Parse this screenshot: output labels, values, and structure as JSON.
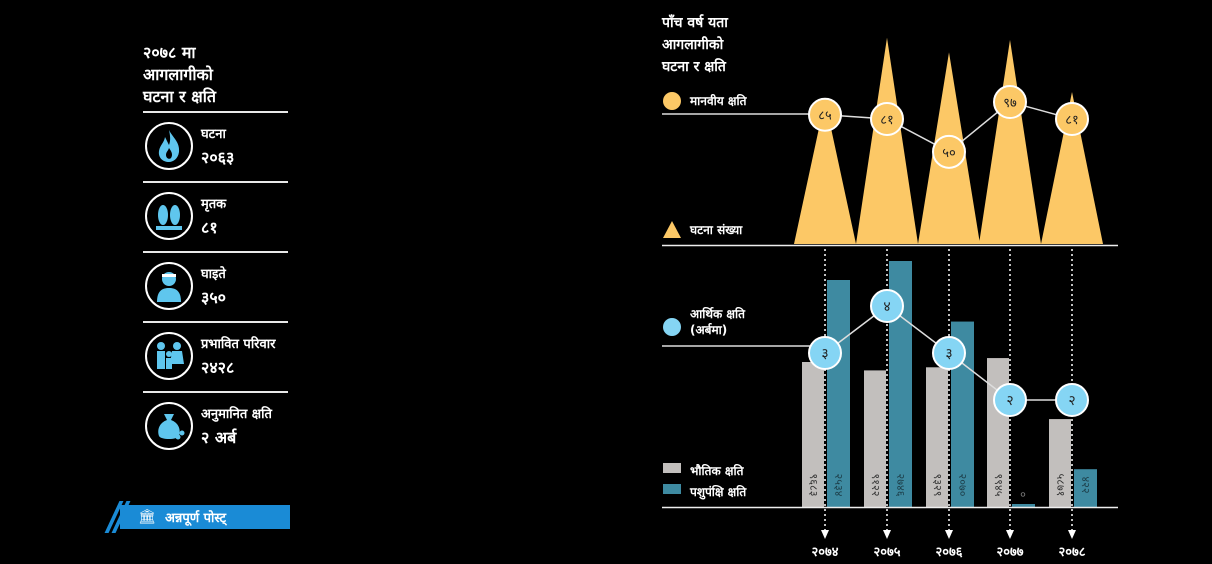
{
  "left_panel": {
    "title_lines": [
      "२०७८ मा",
      "आगलागीको",
      "घटना र क्षति"
    ],
    "items": [
      {
        "label": "घटना",
        "value": "२०६३",
        "icon": "fire-icon"
      },
      {
        "label": "मृतक",
        "value": "८१",
        "icon": "feet-icon"
      },
      {
        "label": "घाइते",
        "value": "३५०",
        "icon": "injured-person-icon"
      },
      {
        "label": "प्रभावित परिवार",
        "value": "२४२८",
        "icon": "family-icon"
      },
      {
        "label": "अनुमानित क्षति",
        "value": "२ अर्ब",
        "icon": "money-bag-icon"
      }
    ]
  },
  "logo": {
    "text": "अन्नपूर्ण पोस्ट्",
    "icon": "temple-icon"
  },
  "colors": {
    "yellow": "#fcc866",
    "blue_circle": "#85d5f4",
    "grey_bar": "#c2bfbd",
    "teal_bar": "#3e8aa1",
    "logo_blue": "#1a8bd6",
    "icon_blue": "#5fc6ee"
  },
  "chart_data": {
    "type": "bar",
    "title_lines": [
      "पाँच वर्ष यता",
      "आगलागीको",
      "घटना र क्षति"
    ],
    "categories": [
      "२०७४",
      "२०७५",
      "२०७६",
      "२०७७",
      "२०७८"
    ],
    "incidents": {
      "legend": "घटना संख्या",
      "values": [
        1950,
        2800,
        2600,
        2770,
        2063
      ]
    },
    "human_loss": {
      "legend": "मानवीय क्षति",
      "values": [
        85,
        81,
        50,
        97,
        81
      ],
      "labels": [
        "८५",
        "८१",
        "५०",
        "९७",
        "८१"
      ]
    },
    "economic_loss": {
      "legend_lines": [
        "आर्थिक क्षति",
        "(अर्बमा)"
      ],
      "values": [
        3,
        4,
        3,
        2,
        2
      ],
      "labels": [
        "३",
        "४",
        "३",
        "२",
        "२"
      ]
    },
    "series": [
      {
        "name": "भौतिक क्षति",
        "values": [
          9683,
          9122,
          9329,
          9945,
          5871
        ],
        "labels": [
          "९६८३",
          "९१२२",
          "९३२९",
          "९९४५",
          "५८७१"
        ]
      },
      {
        "name": "पशुपंक्षि क्षति",
        "values": [
          2534,
          2746,
          2070,
          0,
          422
        ],
        "labels": [
          "२५३४",
          "२७४६",
          "२०७०",
          "०",
          "४२२"
        ]
      }
    ]
  }
}
